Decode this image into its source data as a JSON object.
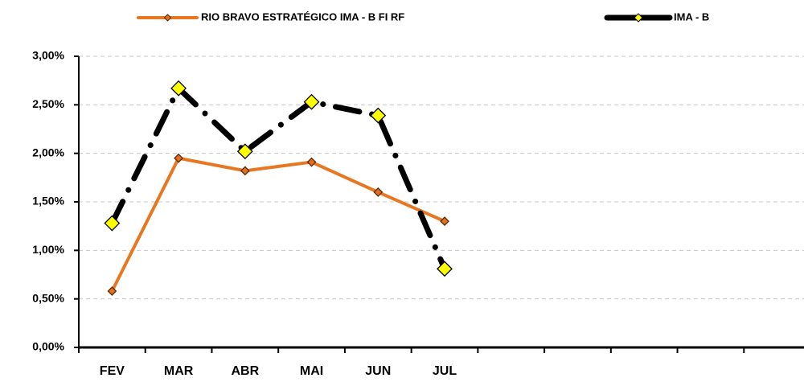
{
  "chart_data": {
    "type": "line",
    "categories": [
      "FEV",
      "MAR",
      "ABR",
      "MAI",
      "JUN",
      "JUL",
      null,
      null,
      null,
      null,
      null
    ],
    "series": [
      {
        "name": "RIO BRAVO ESTRATÉGICO IMA - B FI RF",
        "color": "#e87722",
        "marker_color": "#e07020",
        "values": [
          0.58,
          1.95,
          1.82,
          1.91,
          1.6,
          1.3,
          null,
          null,
          null,
          null,
          null
        ]
      },
      {
        "name": "IMA - B",
        "color": "#000000",
        "marker_color": "#ffff00",
        "values": [
          1.28,
          2.67,
          2.02,
          2.53,
          2.39,
          0.81,
          null,
          null,
          null,
          null,
          null
        ]
      }
    ],
    "ylim": [
      0,
      3
    ],
    "yticks": [
      {
        "value": 0,
        "label": "0,00%"
      },
      {
        "value": 0.5,
        "label": "0,50%"
      },
      {
        "value": 1,
        "label": "1,00%"
      },
      {
        "value": 1.5,
        "label": "1,50%"
      },
      {
        "value": 2,
        "label": "2,00%"
      },
      {
        "value": 2.5,
        "label": "2,50%"
      },
      {
        "value": 3,
        "label": "3,00%"
      }
    ],
    "grid": true
  }
}
